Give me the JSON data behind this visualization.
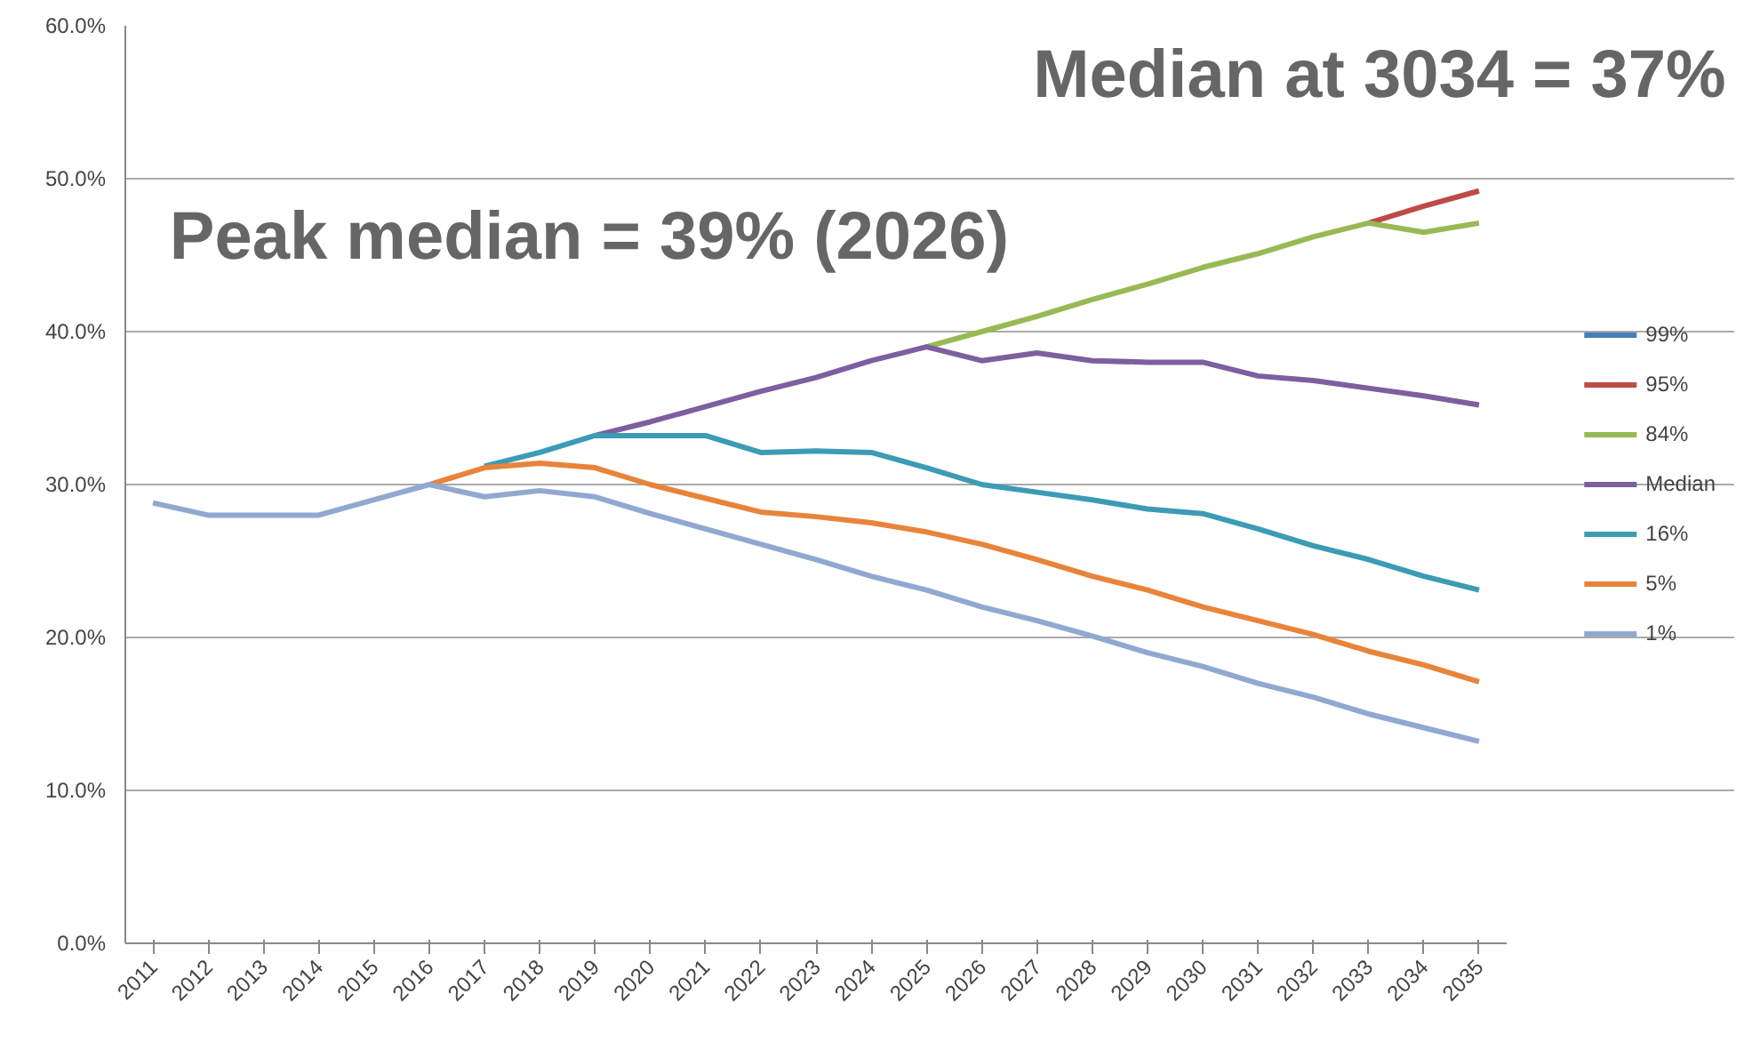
{
  "chart_data": {
    "type": "line",
    "categories": [
      "2011",
      "2012",
      "2013",
      "2014",
      "2015",
      "2016",
      "2017",
      "2018",
      "2019",
      "2020",
      "2021",
      "2022",
      "2023",
      "2024",
      "2025",
      "2026",
      "2027",
      "2028",
      "2029",
      "2030",
      "2031",
      "2032",
      "2033",
      "2034",
      "2035"
    ],
    "series": [
      {
        "name": "99%",
        "color": "#4a7ebb",
        "values": [
          null,
          null,
          null,
          null,
          null,
          null,
          null,
          null,
          null,
          null,
          null,
          null,
          null,
          null,
          null,
          null,
          null,
          null,
          null,
          null,
          null,
          null,
          null,
          null,
          null
        ]
      },
      {
        "name": "95%",
        "color": "#be4b48",
        "values": [
          null,
          null,
          null,
          null,
          null,
          null,
          null,
          null,
          null,
          null,
          null,
          null,
          null,
          null,
          null,
          null,
          null,
          null,
          null,
          null,
          null,
          null,
          47.1,
          48.2,
          49.2
        ]
      },
      {
        "name": "84%",
        "color": "#98b954",
        "values": [
          null,
          null,
          null,
          null,
          null,
          null,
          null,
          null,
          null,
          null,
          null,
          null,
          null,
          null,
          39.0,
          40.0,
          41.0,
          42.1,
          43.1,
          44.2,
          45.1,
          46.2,
          47.1,
          46.5,
          47.1
        ]
      },
      {
        "name": "Median",
        "color": "#7d5fa0",
        "values": [
          null,
          null,
          null,
          null,
          null,
          null,
          null,
          null,
          33.2,
          34.1,
          35.1,
          36.1,
          37.0,
          38.1,
          39.0,
          38.1,
          38.6,
          38.1,
          38.0,
          38.0,
          37.1,
          36.8,
          36.3,
          35.8,
          35.2
        ]
      },
      {
        "name": "16%",
        "color": "#3c9bb5",
        "values": [
          null,
          null,
          null,
          null,
          null,
          null,
          31.2,
          32.1,
          33.2,
          33.2,
          33.2,
          32.1,
          32.2,
          32.1,
          31.1,
          30.0,
          29.5,
          29.0,
          28.4,
          28.1,
          27.1,
          26.0,
          25.1,
          24.0,
          23.1
        ]
      },
      {
        "name": "5%",
        "color": "#e8843a",
        "values": [
          null,
          null,
          null,
          null,
          null,
          30.0,
          31.1,
          31.4,
          31.1,
          30.0,
          29.1,
          28.2,
          27.9,
          27.5,
          26.9,
          26.1,
          25.1,
          24.0,
          23.1,
          22.0,
          21.1,
          20.2,
          19.1,
          18.2,
          17.1
        ]
      },
      {
        "name": "1%",
        "color": "#91a8d0",
        "values": [
          28.8,
          28.0,
          28.0,
          28.0,
          29.0,
          30.0,
          29.2,
          29.6,
          29.2,
          28.1,
          27.1,
          26.1,
          25.1,
          24.0,
          23.1,
          22.0,
          21.1,
          20.1,
          19.0,
          18.1,
          17.0,
          16.1,
          15.0,
          14.1,
          13.2
        ]
      }
    ],
    "ylim": [
      0,
      60
    ],
    "yticks": [
      {
        "value": 0,
        "label": "0.0%"
      },
      {
        "value": 10,
        "label": "10.0%"
      },
      {
        "value": 20,
        "label": "20.0%"
      },
      {
        "value": 30,
        "label": "30.0%"
      },
      {
        "value": 40,
        "label": "40.0%"
      },
      {
        "value": 50,
        "label": "50.0%"
      },
      {
        "value": 60,
        "label": "60.0%"
      }
    ],
    "grid": "y",
    "legend": "right",
    "marker": "none",
    "line_style": "solid",
    "annotations": [
      "Median at 3034 = 37%",
      "Peak median = 39% (2026)"
    ]
  }
}
